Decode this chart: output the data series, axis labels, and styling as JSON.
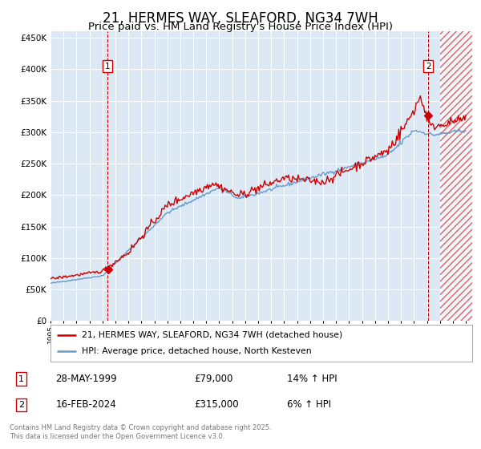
{
  "title": "21, HERMES WAY, SLEAFORD, NG34 7WH",
  "subtitle": "Price paid vs. HM Land Registry's House Price Index (HPI)",
  "ylim": [
    0,
    460000
  ],
  "yticks": [
    0,
    50000,
    100000,
    150000,
    200000,
    250000,
    300000,
    350000,
    400000,
    450000
  ],
  "ytick_labels": [
    "£0",
    "£50K",
    "£100K",
    "£150K",
    "£200K",
    "£250K",
    "£300K",
    "£350K",
    "£400K",
    "£450K"
  ],
  "xlim_start": 1995.0,
  "xlim_end": 2027.5,
  "plot_bg_color": "#dce9f5",
  "grid_color": "#ffffff",
  "title_fontsize": 12,
  "subtitle_fontsize": 9.5,
  "red_line_color": "#cc0000",
  "blue_line_color": "#6699cc",
  "legend_label_red": "21, HERMES WAY, SLEAFORD, NG34 7WH (detached house)",
  "legend_label_blue": "HPI: Average price, detached house, North Kesteven",
  "sale1_date": "28-MAY-1999",
  "sale1_price": "£79,000",
  "sale1_hpi": "14% ↑ HPI",
  "sale1_year": 1999.4,
  "sale1_value": 79000,
  "sale2_date": "16-FEB-2024",
  "sale2_price": "£315,000",
  "sale2_hpi": "6% ↑ HPI",
  "sale2_year": 2024.1,
  "sale2_value": 315000,
  "footer_text": "Contains HM Land Registry data © Crown copyright and database right 2025.\nThis data is licensed under the Open Government Licence v3.0.",
  "hatch_start": 2025.0
}
